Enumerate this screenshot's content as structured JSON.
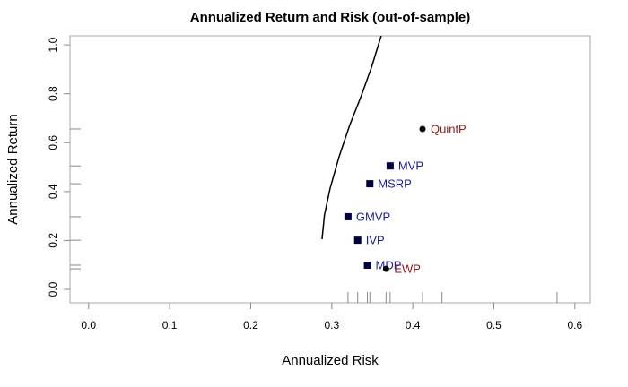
{
  "chart_data": {
    "type": "scatter",
    "title": "Annualized Return and Risk (out-of-sample)",
    "x_label": "Annualized Risk",
    "y_label": "Annualized Return",
    "xlim": [
      -0.023,
      0.619
    ],
    "ylim": [
      -0.055,
      1.037
    ],
    "xticks": [
      {
        "value": 0,
        "label": "0.0"
      },
      {
        "value": 0.1,
        "label": "0.1"
      },
      {
        "value": 0.2,
        "label": "0.2"
      },
      {
        "value": 0.3,
        "label": "0.3"
      },
      {
        "value": 0.4,
        "label": "0.4"
      },
      {
        "value": 0.5,
        "label": "0.5"
      },
      {
        "value": 0.6,
        "label": "0.6"
      }
    ],
    "yticks": [
      {
        "value": 0,
        "label": "0.0"
      },
      {
        "value": 0.2,
        "label": "0.2"
      },
      {
        "value": 0.4,
        "label": "0.4"
      },
      {
        "value": 0.6,
        "label": "0.6"
      },
      {
        "value": 0.8,
        "label": "0.8"
      },
      {
        "value": 1,
        "label": "1.0"
      }
    ],
    "frontier": {
      "color": "#000000",
      "x": [
        0.288,
        0.291,
        0.298,
        0.309,
        0.322,
        0.336,
        0.349,
        0.361
      ],
      "values": [
        0.205,
        0.304,
        0.414,
        0.542,
        0.67,
        0.788,
        0.908,
        1.037
      ]
    },
    "series": [
      {
        "name": "QuintP",
        "color": "#000000",
        "label_color": "#8b1a1a",
        "marker": "circle",
        "x": [
          0.412
        ],
        "values": [
          0.656
        ]
      },
      {
        "name": "MVP",
        "color": "#00003d",
        "label_color": "#1c1c99",
        "marker": "square",
        "x": [
          0.372
        ],
        "values": [
          0.505
        ]
      },
      {
        "name": "MSRP",
        "color": "#00003d",
        "label_color": "#1c1c99",
        "marker": "square",
        "x": [
          0.347
        ],
        "values": [
          0.432
        ]
      },
      {
        "name": "GMVP",
        "color": "#00003d",
        "label_color": "#1c1c99",
        "marker": "square",
        "x": [
          0.32
        ],
        "values": [
          0.297
        ]
      },
      {
        "name": "IVP",
        "color": "#00003d",
        "label_color": "#1c1c99",
        "marker": "square",
        "x": [
          0.332
        ],
        "values": [
          0.201
        ]
      },
      {
        "name": "MDP",
        "color": "#00003d",
        "label_color": "#1c1c99",
        "marker": "square",
        "x": [
          0.344
        ],
        "values": [
          0.099
        ]
      },
      {
        "name": "EWP",
        "color": "#000000",
        "label_color": "#8b1a1a",
        "marker": "circle",
        "x": [
          0.367
        ],
        "values": [
          0.084
        ]
      }
    ],
    "rug_x": [
      0.32,
      0.332,
      0.344,
      0.347,
      0.367,
      0.372,
      0.412,
      0.436,
      0.578
    ],
    "rug_y": [
      0.084,
      0.099,
      0.201,
      0.297,
      0.432,
      0.505,
      0.656
    ]
  }
}
